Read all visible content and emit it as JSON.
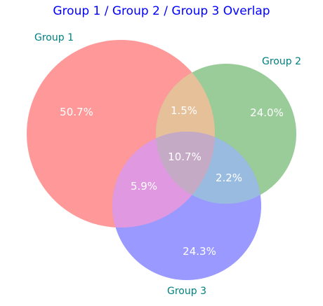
{
  "title": "Group 1 / Group 2 / Group 3 Overlap",
  "colors": {
    "title": "#0000ff",
    "set_label": "#008080",
    "region_label": "#ffffff",
    "group1_only": "#ff9999",
    "group2_only": "#99cc99",
    "group3_only": "#9999ff",
    "group1_group2": "#e5c099",
    "group1_group3": "#e099e0",
    "group2_group3": "#99bbe0",
    "all_three": "#c5aac6"
  },
  "sets": [
    {
      "id": "group1",
      "label": "Group 1"
    },
    {
      "id": "group2",
      "label": "Group 2"
    },
    {
      "id": "group3",
      "label": "Group 3"
    }
  ],
  "regions": {
    "group1_only": "50.7%",
    "group2_only": "24.0%",
    "group3_only": "24.3%",
    "group1_group2": "1.5%",
    "group1_group3": "5.9%",
    "group2_group3": "2.2%",
    "all_three": "10.7%"
  }
}
